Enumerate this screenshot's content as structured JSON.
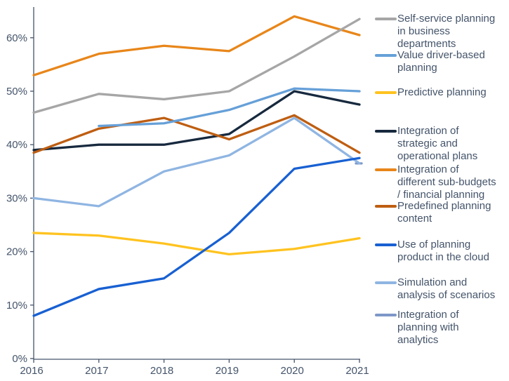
{
  "chart_data": {
    "type": "line",
    "title": "",
    "xlabel": "",
    "ylabel": "",
    "x_labels": [
      "2016",
      "2017",
      "2018",
      "2019",
      "2020",
      "2021"
    ],
    "y_tick_labels": [
      "0%",
      "10%",
      "20%",
      "30%",
      "40%",
      "50%",
      "60%"
    ],
    "ylim": [
      0,
      65
    ],
    "grid": false,
    "legend_position": "right",
    "axis_color": "#44546A",
    "series": [
      {
        "name": "Self-service planning in business departments",
        "color": "#A6A6A6",
        "values": [
          46,
          49.5,
          48.5,
          50,
          56.5,
          63.5
        ]
      },
      {
        "name": "Value driver-based planning",
        "color": "#66A0D8",
        "values": [
          null,
          43.5,
          44,
          46.5,
          50.5,
          50
        ]
      },
      {
        "name": "Predictive planning",
        "color": "#FFC320",
        "values": [
          23.5,
          23,
          21.5,
          19.5,
          20.5,
          22.5
        ]
      },
      {
        "name": "Integration of strategic and operational plans",
        "color": "#17293E",
        "values": [
          39,
          40,
          40,
          42,
          50,
          47.5
        ]
      },
      {
        "name": "Integration of different sub-budgets /  financial planning",
        "color": "#E8861A",
        "values": [
          53,
          57,
          58.5,
          57.5,
          64,
          60.5
        ]
      },
      {
        "name": "Predefined planning content",
        "color": "#BE5E12",
        "values": [
          38.5,
          43,
          45,
          41,
          45.5,
          38.5
        ]
      },
      {
        "name": "Use of planning product in the cloud",
        "color": "#1860D2",
        "values": [
          8,
          13,
          15,
          23.5,
          35.5,
          37.5
        ]
      },
      {
        "name": "Simulation and analysis of scenarios",
        "color": "#8FB5E2",
        "values": [
          30,
          28.5,
          35,
          38,
          45,
          36.5
        ]
      },
      {
        "name": "Integration of planning with analytics",
        "color": "#7E97C8",
        "values": [
          null,
          null,
          null,
          null,
          null,
          36.5
        ]
      }
    ]
  },
  "legend": {
    "items": [
      {
        "label": "Self-service planning\nin business\ndepartments"
      },
      {
        "label": "Value driver-based\nplanning"
      },
      {
        "label": "Predictive planning"
      },
      {
        "label": "Integration of\nstrategic and\noperational plans"
      },
      {
        "label": "Integration of\ndifferent sub-budgets\n/  financial planning"
      },
      {
        "label": "Predefined planning\ncontent"
      },
      {
        "label": "Use of planning\nproduct in the cloud"
      },
      {
        "label": "Simulation and\nanalysis of scenarios"
      },
      {
        "label": "Integration of\nplanning with\nanalytics"
      }
    ]
  }
}
